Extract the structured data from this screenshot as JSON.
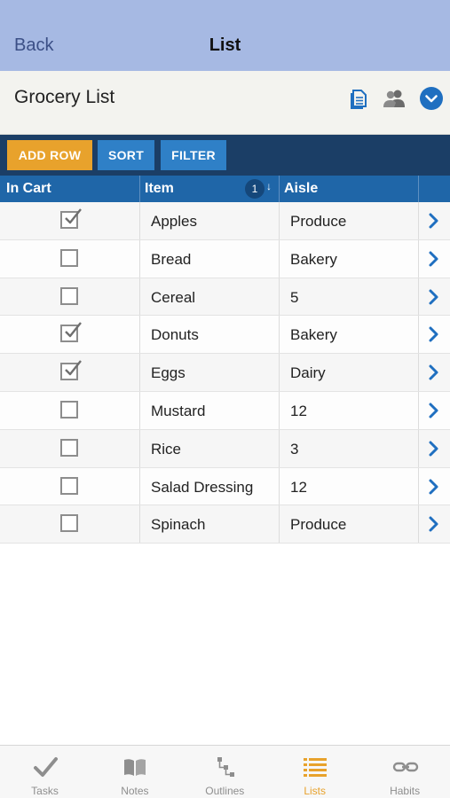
{
  "navbar": {
    "back_label": "Back",
    "title": "List"
  },
  "list": {
    "title": "Grocery List",
    "icons": [
      "document-icon",
      "people-icon",
      "chevron-down-circle-icon"
    ]
  },
  "toolbar": {
    "add_row_label": "ADD ROW",
    "sort_label": "SORT",
    "filter_label": "FILTER"
  },
  "columns": {
    "in_cart": "In Cart",
    "item": "Item",
    "aisle": "Aisle",
    "sort_order": "1",
    "sort_arrow": "↓"
  },
  "rows": [
    {
      "checked": true,
      "item": "Apples",
      "aisle": "Produce"
    },
    {
      "checked": false,
      "item": "Bread",
      "aisle": "Bakery"
    },
    {
      "checked": false,
      "item": "Cereal",
      "aisle": "5"
    },
    {
      "checked": true,
      "item": "Donuts",
      "aisle": "Bakery"
    },
    {
      "checked": true,
      "item": "Eggs",
      "aisle": "Dairy"
    },
    {
      "checked": false,
      "item": "Mustard",
      "aisle": "12"
    },
    {
      "checked": false,
      "item": "Rice",
      "aisle": "3"
    },
    {
      "checked": false,
      "item": "Salad Dressing",
      "aisle": "12"
    },
    {
      "checked": false,
      "item": "Spinach",
      "aisle": "Produce"
    }
  ],
  "tabs": [
    {
      "label": "Tasks",
      "icon": "checkmark-icon",
      "active": false
    },
    {
      "label": "Notes",
      "icon": "book-icon",
      "active": false
    },
    {
      "label": "Outlines",
      "icon": "outline-icon",
      "active": false
    },
    {
      "label": "Lists",
      "icon": "list-icon",
      "active": true
    },
    {
      "label": "Habits",
      "icon": "chain-icon",
      "active": false
    }
  ],
  "colors": {
    "navbar": "#a6b9e3",
    "toolbar": "#1b3e66",
    "header": "#1f66a8",
    "accent": "#e8a22c",
    "button": "#2f80c7",
    "link": "#1f6fc0"
  }
}
